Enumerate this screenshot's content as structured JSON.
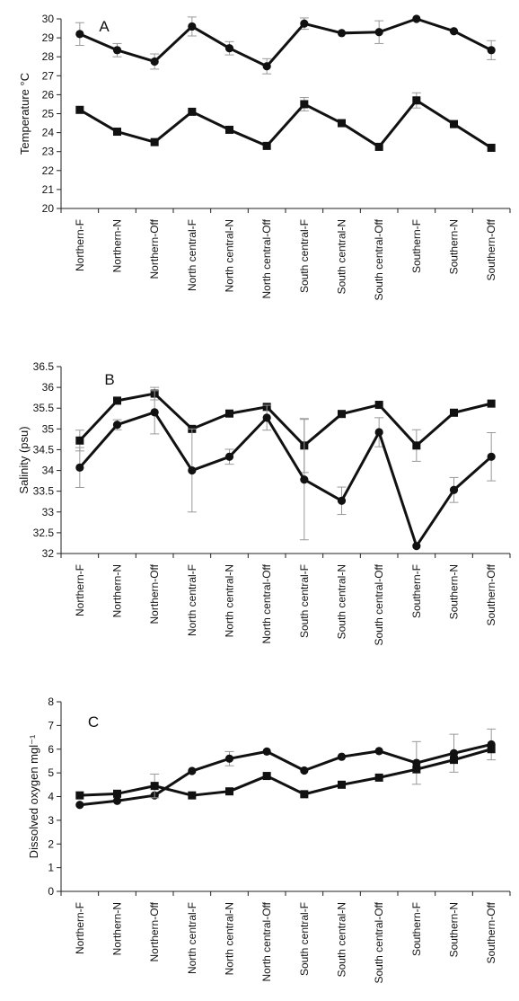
{
  "chart_data": [
    {
      "panel_label": "A",
      "type": "line",
      "ylabel": "Temperature °C",
      "ylim": [
        20,
        30
      ],
      "yticks": [
        "20",
        "21",
        "22",
        "23",
        "24",
        "25",
        "26",
        "27",
        "28",
        "29",
        "30"
      ],
      "categories": [
        "Northern-F",
        "Northern-N",
        "Northern-Off",
        "North central-F",
        "North central-N",
        "North central-Off",
        "South central-F",
        "South central-N",
        "South central-Off",
        "Southern-F",
        "Southern-N",
        "Southern-Off"
      ],
      "series": [
        {
          "marker": "circle",
          "values": [
            29.2,
            28.35,
            27.75,
            29.6,
            28.45,
            27.5,
            29.75,
            29.25,
            29.3,
            30.0,
            29.35,
            28.35
          ],
          "errors": [
            0.6,
            0.35,
            0.4,
            0.5,
            0.35,
            0.4,
            0.3,
            0.0,
            0.6,
            0.0,
            0.0,
            0.5
          ]
        },
        {
          "marker": "square",
          "values": [
            25.2,
            24.05,
            23.5,
            25.1,
            24.15,
            23.3,
            25.5,
            24.5,
            23.25,
            25.7,
            24.45,
            23.2
          ],
          "errors": [
            0.0,
            0.0,
            0.0,
            0.0,
            0.0,
            0.0,
            0.35,
            0.0,
            0.0,
            0.4,
            0.0,
            0.0
          ]
        }
      ]
    },
    {
      "panel_label": "B",
      "type": "line",
      "ylabel": "Salinity (psu)",
      "ylim": [
        32,
        36.5
      ],
      "yticks": [
        "32",
        "32.5",
        "33",
        "33.5",
        "34",
        "34.5",
        "35",
        "35.5",
        "36",
        "36.5"
      ],
      "categories": [
        "Northern-F",
        "Northern-N",
        "Northern-Off",
        "North central-F",
        "North central-N",
        "North central-Off",
        "South central-F",
        "South central-N",
        "South central-Off",
        "Southern-F",
        "Southern-N",
        "Southern-Off"
      ],
      "series": [
        {
          "marker": "square",
          "values": [
            34.72,
            35.68,
            35.85,
            35.0,
            35.37,
            35.53,
            34.6,
            35.36,
            35.58,
            34.6,
            35.39,
            35.61
          ],
          "errors": [
            0.25,
            0.0,
            0.15,
            0.0,
            0.0,
            0.0,
            0.65,
            0.0,
            0.0,
            0.38,
            0.0,
            0.0
          ]
        },
        {
          "marker": "circle",
          "values": [
            34.07,
            35.1,
            35.4,
            34.0,
            34.33,
            35.27,
            33.78,
            33.27,
            34.92,
            32.18,
            33.53,
            34.33
          ],
          "errors": [
            0.48,
            0.12,
            0.52,
            1.0,
            0.18,
            0.3,
            1.45,
            0.33,
            0.35,
            0.0,
            0.3,
            0.58
          ]
        }
      ]
    },
    {
      "panel_label": "C",
      "type": "line",
      "ylabel": "Dissolved oxygen mgl⁻¹",
      "ylim": [
        0,
        8
      ],
      "yticks": [
        "0",
        "1",
        "2",
        "3",
        "4",
        "5",
        "6",
        "7",
        "8"
      ],
      "categories": [
        "Northern-F",
        "Northern-N",
        "Northern-Off",
        "North central-F",
        "North central-N",
        "North central-Off",
        "South central-F",
        "South central-N",
        "South central-Off",
        "Southern-F",
        "Southern-N",
        "Southern-Off"
      ],
      "series": [
        {
          "marker": "circle",
          "values": [
            3.65,
            3.82,
            4.05,
            5.08,
            5.6,
            5.9,
            5.1,
            5.68,
            5.92,
            5.42,
            5.83,
            6.2
          ],
          "errors": [
            0.0,
            0.0,
            0.0,
            0.0,
            0.3,
            0.0,
            0.0,
            0.0,
            0.0,
            0.9,
            0.8,
            0.65
          ]
        },
        {
          "marker": "square",
          "values": [
            4.05,
            4.12,
            4.45,
            4.05,
            4.22,
            4.87,
            4.1,
            4.5,
            4.8,
            5.15,
            5.55,
            6.0
          ],
          "errors": [
            0.0,
            0.0,
            0.5,
            0.0,
            0.0,
            0.0,
            0.0,
            0.0,
            0.0,
            0.0,
            0.0,
            0.0
          ]
        }
      ]
    }
  ]
}
